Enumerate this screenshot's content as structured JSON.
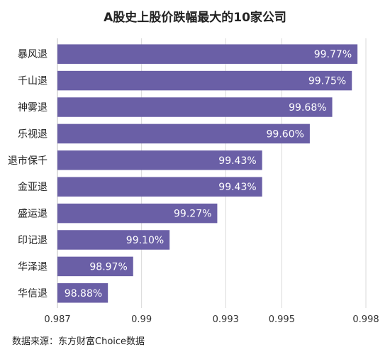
{
  "chart_data": {
    "type": "bar",
    "orientation": "horizontal",
    "title": "A股史上股价跌幅最大的10家公司",
    "categories": [
      "暴风退",
      "千山退",
      "神雾退",
      "乐视退",
      "退市保千",
      "金亚退",
      "盛运退",
      "印记退",
      "华泽退",
      "华信退"
    ],
    "values": [
      0.9977,
      0.9975,
      0.9968,
      0.996,
      0.9943,
      0.9943,
      0.9927,
      0.991,
      0.9897,
      0.9888
    ],
    "value_labels": [
      "99.77%",
      "99.75%",
      "99.68%",
      "99.60%",
      "99.43%",
      "99.43%",
      "99.27%",
      "99.10%",
      "98.97%",
      "98.88%"
    ],
    "x_ticks": [
      0.987,
      0.99,
      0.993,
      0.995,
      0.998
    ],
    "x_tick_labels": [
      "0.987",
      "0.99",
      "0.993",
      "0.995",
      "0.998"
    ],
    "xlim": [
      0.987,
      0.998
    ],
    "bar_color": "#6a5fa6",
    "grid": true
  },
  "source_text": "数据来源：东方财富Choice数据"
}
